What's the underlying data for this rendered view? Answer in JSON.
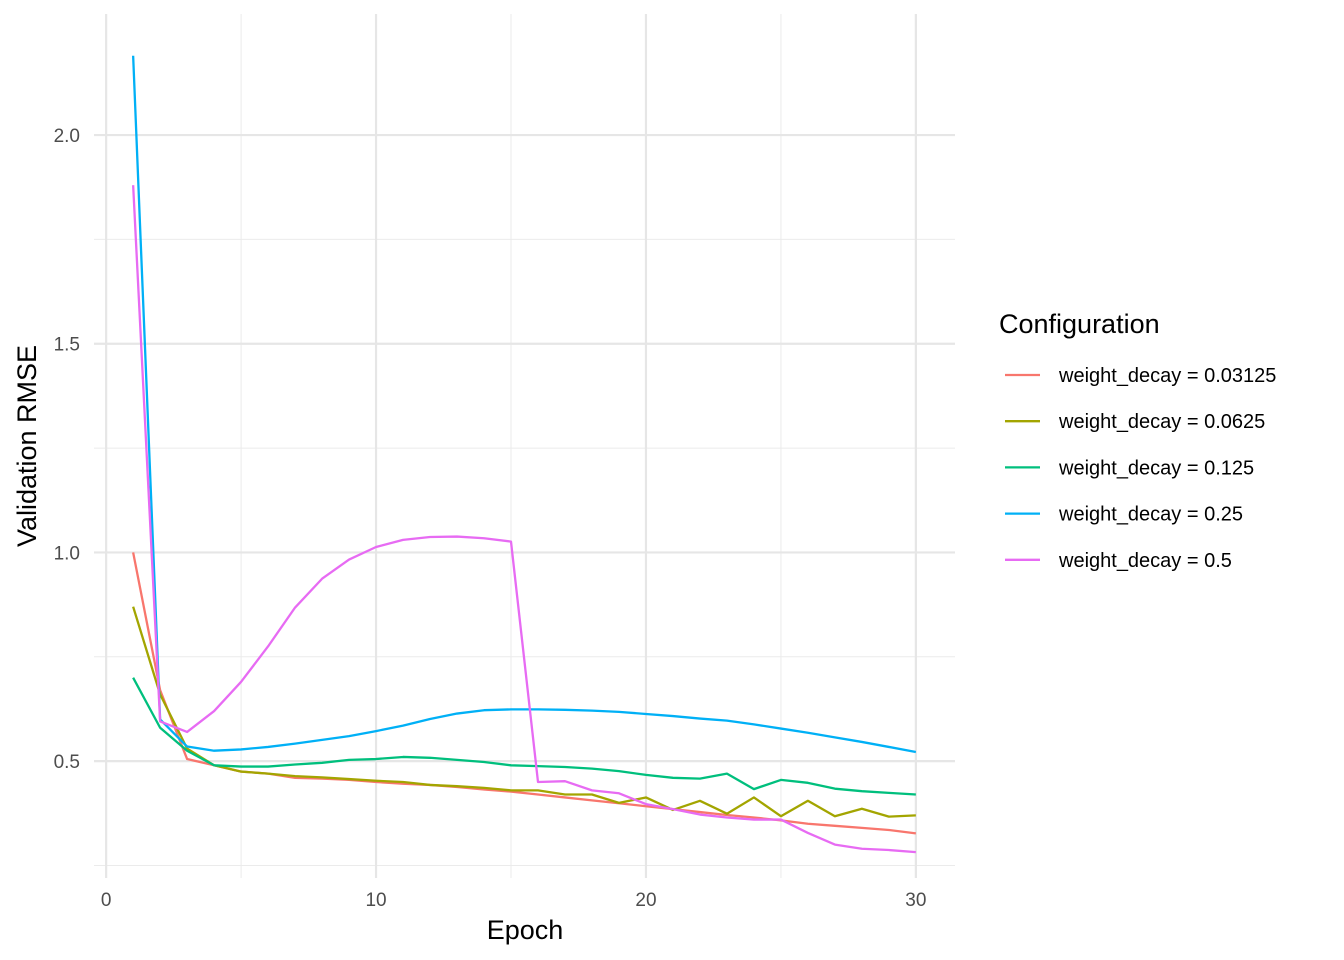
{
  "chart_data": {
    "type": "line",
    "title": "",
    "xlabel": "Epoch",
    "ylabel": "Validation RMSE",
    "xlim": [
      -0.45,
      31.45
    ],
    "ylim": [
      0.22,
      2.29
    ],
    "x_ticks": [
      0,
      10,
      20,
      30
    ],
    "x_tick_labels": [
      "0",
      "10",
      "20",
      "30"
    ],
    "x_minor_ticks": [
      5,
      15,
      25
    ],
    "y_ticks": [
      0.5,
      1.0,
      1.5,
      2.0
    ],
    "y_tick_labels": [
      "0.5",
      "1.0",
      "1.5",
      "2.0"
    ],
    "y_minor_ticks": [
      0.25,
      0.75,
      1.25,
      1.75
    ],
    "grid": true,
    "legend": {
      "title": "Configuration",
      "position": "right"
    },
    "x": [
      1,
      2,
      3,
      4,
      5,
      6,
      7,
      8,
      9,
      10,
      11,
      12,
      13,
      14,
      15,
      16,
      17,
      18,
      19,
      20,
      21,
      22,
      23,
      24,
      25,
      26,
      27,
      28,
      29,
      30
    ],
    "series": [
      {
        "name": "weight_decay = 0.03125",
        "color": "#F8766D",
        "values": [
          1.0,
          0.67,
          0.505,
          0.49,
          0.475,
          0.47,
          0.46,
          0.458,
          0.455,
          0.45,
          0.446,
          0.443,
          0.438,
          0.432,
          0.427,
          0.42,
          0.413,
          0.406,
          0.399,
          0.392,
          0.385,
          0.378,
          0.371,
          0.365,
          0.358,
          0.35,
          0.345,
          0.34,
          0.335,
          0.327
        ]
      },
      {
        "name": "weight_decay = 0.0625",
        "color": "#A3A500",
        "values": [
          0.87,
          0.66,
          0.53,
          0.49,
          0.475,
          0.47,
          0.464,
          0.461,
          0.457,
          0.453,
          0.45,
          0.443,
          0.44,
          0.436,
          0.43,
          0.43,
          0.42,
          0.42,
          0.4,
          0.413,
          0.383,
          0.405,
          0.374,
          0.413,
          0.368,
          0.405,
          0.368,
          0.386,
          0.367,
          0.37
        ]
      },
      {
        "name": "weight_decay = 0.125",
        "color": "#00BF7D",
        "values": [
          0.7,
          0.58,
          0.525,
          0.49,
          0.487,
          0.487,
          0.492,
          0.496,
          0.503,
          0.505,
          0.51,
          0.508,
          0.503,
          0.498,
          0.49,
          0.488,
          0.486,
          0.482,
          0.476,
          0.467,
          0.46,
          0.458,
          0.47,
          0.433,
          0.455,
          0.448,
          0.434,
          0.428,
          0.424,
          0.42
        ]
      },
      {
        "name": "weight_decay = 0.25",
        "color": "#00B0F6",
        "values": [
          2.19,
          0.6,
          0.535,
          0.525,
          0.528,
          0.534,
          0.542,
          0.551,
          0.56,
          0.572,
          0.585,
          0.601,
          0.614,
          0.622,
          0.624,
          0.624,
          0.623,
          0.621,
          0.618,
          0.613,
          0.608,
          0.602,
          0.597,
          0.588,
          0.578,
          0.568,
          0.557,
          0.546,
          0.534,
          0.522
        ]
      },
      {
        "name": "weight_decay = 0.5",
        "color": "#E76BF3",
        "values": [
          1.88,
          0.595,
          0.57,
          0.62,
          0.69,
          0.775,
          0.868,
          0.937,
          0.983,
          1.013,
          1.03,
          1.037,
          1.038,
          1.034,
          1.026,
          0.45,
          0.452,
          0.43,
          0.423,
          0.397,
          0.385,
          0.372,
          0.365,
          0.36,
          0.36,
          0.328,
          0.3,
          0.29,
          0.287,
          0.282
        ]
      }
    ]
  }
}
